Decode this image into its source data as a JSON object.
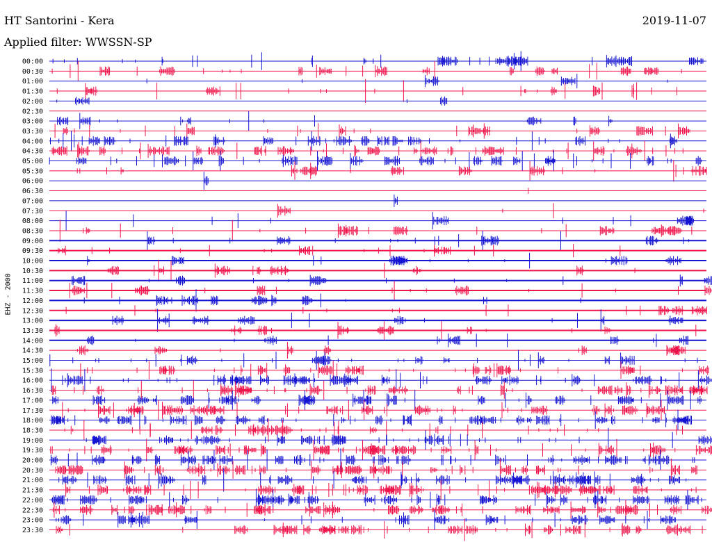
{
  "header": {
    "station": "HT Santorini - Kera",
    "date": "2019-11-07",
    "filter": "Applied filter: WWSSN-SP",
    "channel": "EHZ - 2000"
  },
  "colors": {
    "odd": "#1414d2",
    "even": "#f0144b"
  },
  "chart_data": {
    "type": "line",
    "title": "HT Santorini - Kera",
    "subtitle": "Applied filter: WWSSN-SP",
    "ylabel": "EHZ - 2000",
    "row_labels": [
      "00:00",
      "00:30",
      "01:00",
      "01:30",
      "02:00",
      "02:30",
      "03:00",
      "03:30",
      "04:00",
      "04:30",
      "05:00",
      "05:30",
      "06:00",
      "06:30",
      "07:00",
      "07:30",
      "08:00",
      "08:30",
      "09:00",
      "09:30",
      "10:00",
      "10:30",
      "11:00",
      "11:30",
      "12:00",
      "12:30",
      "13:00",
      "13:30",
      "14:00",
      "14:30",
      "15:00",
      "15:30",
      "16:00",
      "16:30",
      "17:00",
      "17:30",
      "18:00",
      "18:30",
      "19:00",
      "19:30",
      "20:00",
      "20:30",
      "21:00",
      "21:30",
      "22:00",
      "22:30",
      "23:00",
      "23:30"
    ],
    "row_color_cycle": [
      "blue",
      "red"
    ]
  }
}
